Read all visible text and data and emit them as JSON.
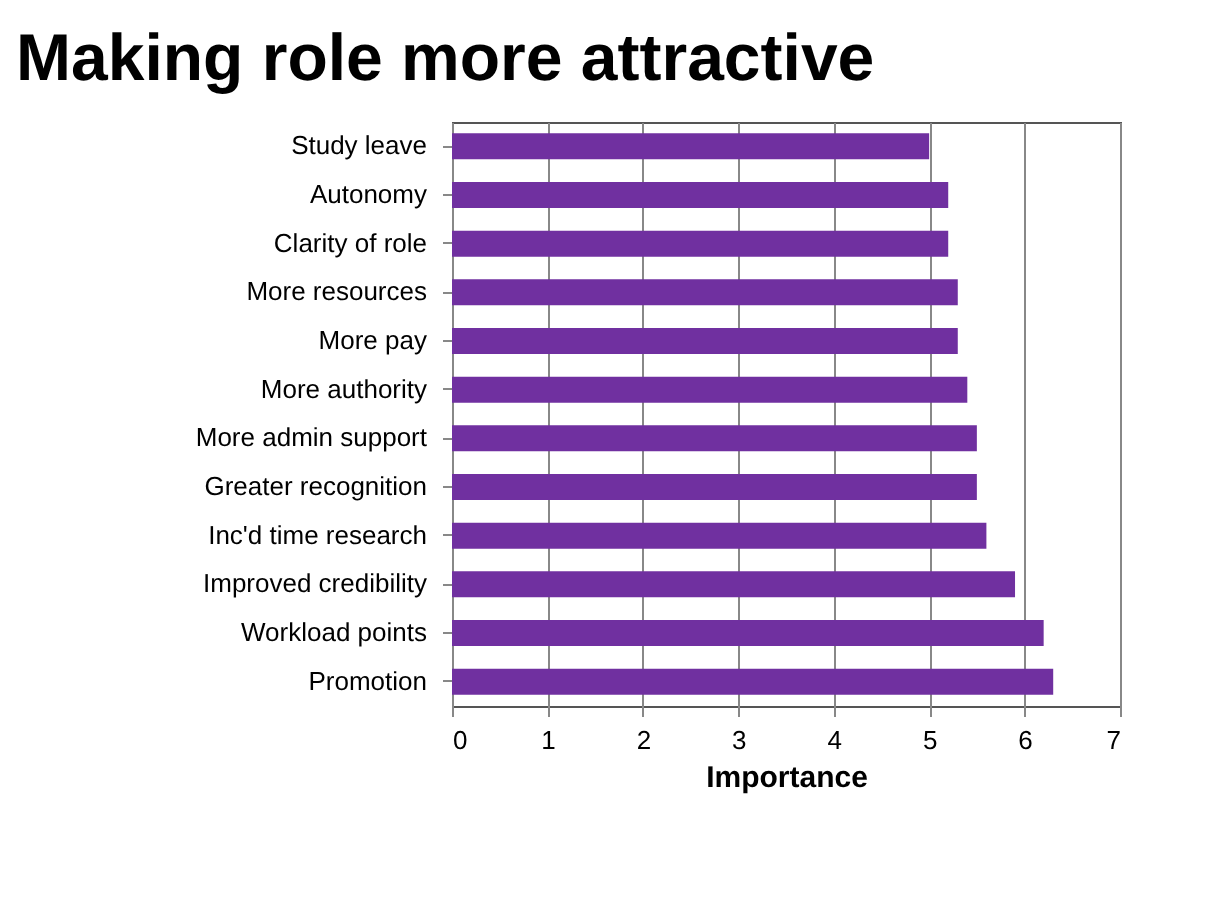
{
  "chart_data": {
    "type": "bar",
    "orientation": "horizontal",
    "title": "Making role more attractive",
    "xlabel": "Importance",
    "categories": [
      "Study leave",
      "Autonomy",
      "Clarity of role",
      "More resources",
      "More pay",
      "More authority",
      "More admin support",
      "Greater recognition",
      "Inc'd time research",
      "Improved credibility",
      "Workload points",
      "Promotion"
    ],
    "values": [
      5.0,
      5.2,
      5.2,
      5.3,
      5.3,
      5.4,
      5.5,
      5.5,
      5.6,
      5.9,
      6.2,
      6.3
    ],
    "color": "#7030a0",
    "xlim": [
      0,
      7
    ],
    "xticks": [
      0,
      1,
      2,
      3,
      4,
      5,
      6,
      7
    ],
    "grid": "x"
  }
}
